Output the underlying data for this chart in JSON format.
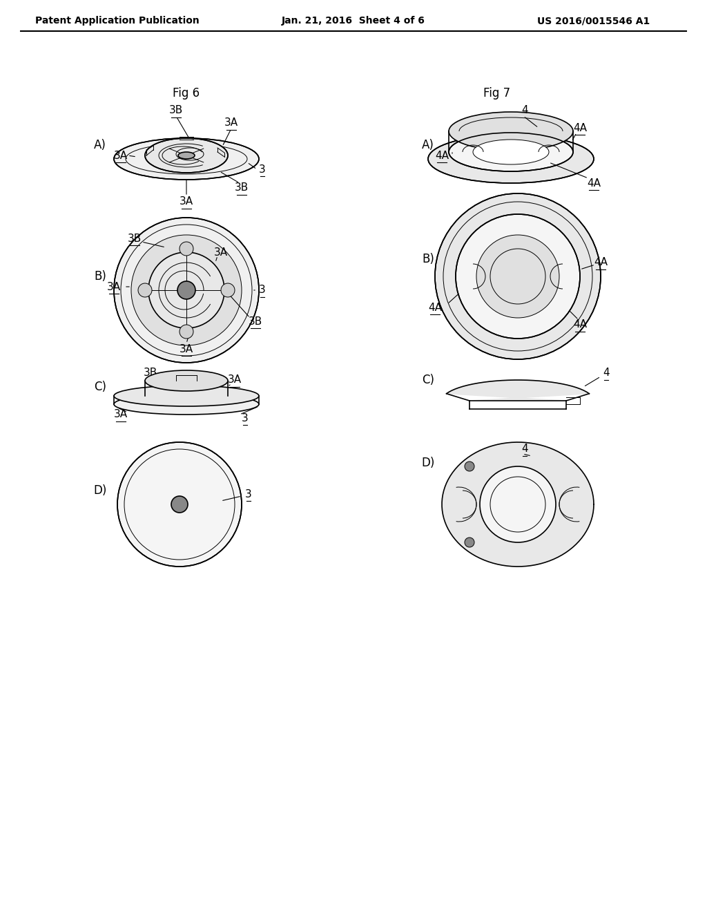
{
  "bg_color": "#ffffff",
  "header_left": "Patent Application Publication",
  "header_center": "Jan. 21, 2016  Sheet 4 of 6",
  "header_right": "US 2016/0015546 A1",
  "fig6_title": "Fig 6",
  "fig7_title": "Fig 7",
  "header_fontsize": 10,
  "title_fontsize": 12,
  "label_fontsize": 11,
  "line_color": "#000000",
  "line_width": 1.2,
  "thin_line": 0.7
}
